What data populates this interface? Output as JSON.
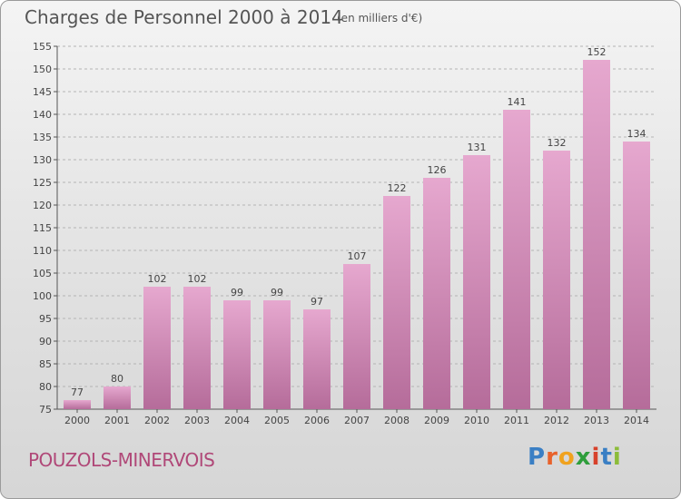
{
  "header": {
    "title": "Charges de Personnel 2000 à 2014",
    "unit": "(en milliers d'€)"
  },
  "footer": {
    "commune": "POUZOLS-MINERVOIS",
    "logo_letters": [
      "P",
      "r",
      "o",
      "x",
      "i",
      "t",
      "i"
    ],
    "logo_colors": [
      "#3a7fc4",
      "#e8622b",
      "#f0a21e",
      "#2f9e3c",
      "#d7412b",
      "#3a7fc4",
      "#8cbc3a"
    ]
  },
  "colors": {
    "bar_top": "#e6a8cf",
    "bar_bottom": "#b56c9a",
    "grid": "#b4b4b4",
    "axis": "#555555"
  },
  "chart_data": {
    "type": "bar",
    "title": "Charges de Personnel 2000 à 2014",
    "subtitle": "(en milliers d'€)",
    "categories": [
      "2000",
      "2001",
      "2002",
      "2003",
      "2004",
      "2005",
      "2006",
      "2007",
      "2008",
      "2009",
      "2010",
      "2011",
      "2012",
      "2013",
      "2014"
    ],
    "values": [
      77,
      80,
      102,
      102,
      99,
      99,
      97,
      107,
      122,
      126,
      131,
      141,
      132,
      152,
      134
    ],
    "ylim": [
      75,
      155
    ],
    "yticks": [
      75,
      80,
      85,
      90,
      95,
      100,
      105,
      110,
      115,
      120,
      125,
      130,
      135,
      140,
      145,
      150,
      155
    ],
    "grid": true,
    "legend": "none"
  }
}
